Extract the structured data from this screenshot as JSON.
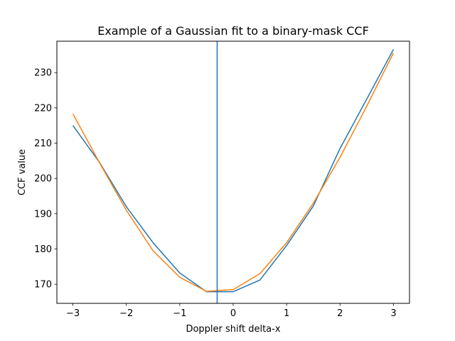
{
  "chart_data": {
    "type": "line",
    "title": "Example of a Gaussian fit to a binary-mask CCF",
    "xlabel": "Doppler shift delta-x",
    "ylabel": "CCF value",
    "xlim": [
      -3.3,
      3.3
    ],
    "ylim": [
      164.6,
      238.9
    ],
    "xticks": [
      -3,
      -2,
      -1,
      0,
      1,
      2,
      3
    ],
    "xtick_labels": [
      "−3",
      "−2",
      "−1",
      "0",
      "1",
      "2",
      "3"
    ],
    "yticks": [
      170,
      180,
      190,
      200,
      210,
      220,
      230
    ],
    "ytick_labels": [
      "170",
      "180",
      "190",
      "200",
      "210",
      "220",
      "230"
    ],
    "grid": false,
    "vline": {
      "x": -0.3,
      "color": "#1f77b4"
    },
    "x": [
      -3.0,
      -2.5,
      -2.0,
      -1.5,
      -1.0,
      -0.5,
      0.0,
      0.5,
      1.0,
      1.5,
      2.0,
      2.5,
      3.0
    ],
    "series": [
      {
        "color": "#1f77b4",
        "values": [
          215.0,
          204.5,
          192.0,
          181.8,
          173.2,
          167.9,
          167.9,
          171.2,
          181.0,
          192.2,
          208.5,
          222.5,
          236.6
        ]
      },
      {
        "color": "#ff7f0e",
        "values": [
          218.3,
          204.4,
          191.0,
          179.5,
          172.0,
          168.0,
          168.5,
          173.0,
          181.8,
          193.0,
          206.0,
          220.5,
          235.6
        ]
      }
    ]
  }
}
